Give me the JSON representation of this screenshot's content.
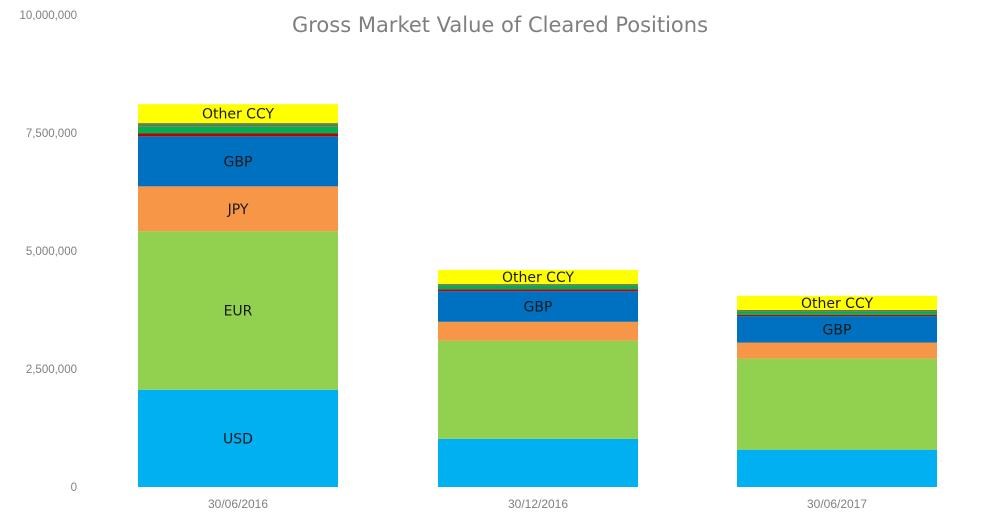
{
  "chart_data": {
    "type": "bar",
    "stacked": true,
    "title": "Gross Market Value of Cleared Positions",
    "xlabel": "",
    "ylabel": "",
    "ylim": [
      0,
      10000000
    ],
    "yticks": [
      0,
      2500000,
      5000000,
      7500000,
      10000000
    ],
    "ytick_labels": [
      "0",
      "2,500,000",
      "5,000,000",
      "7,500,000",
      "10,000,000"
    ],
    "categories": [
      "30/06/2016",
      "30/12/2016",
      "30/06/2017"
    ],
    "grid": false,
    "legend": "none",
    "series": [
      {
        "name": "USD",
        "color": "#00b0f0",
        "values": [
          2060000,
          1020000,
          790000
        ],
        "labels": [
          "USD",
          "",
          ""
        ]
      },
      {
        "name": "EUR",
        "color": "#92d050",
        "values": [
          3360000,
          2080000,
          1930000
        ],
        "labels": [
          "EUR",
          "",
          ""
        ]
      },
      {
        "name": "JPY",
        "color": "#f79646",
        "values": [
          950000,
          400000,
          340000
        ],
        "labels": [
          "JPY",
          "",
          ""
        ]
      },
      {
        "name": "GBP",
        "color": "#0070c0",
        "values": [
          1060000,
          650000,
          560000
        ],
        "labels": [
          "GBP",
          "GBP",
          "GBP"
        ]
      },
      {
        "color": "#c00000",
        "values": [
          60000,
          40000,
          30000
        ],
        "labels": [
          "",
          "",
          ""
        ]
      },
      {
        "color": "#00b050",
        "values": [
          140000,
          70000,
          60000
        ],
        "labels": [
          "",
          "",
          ""
        ]
      },
      {
        "color": "#5f7f4f",
        "values": [
          80000,
          40000,
          40000
        ],
        "labels": [
          "",
          "",
          ""
        ]
      },
      {
        "name": "Other CCY",
        "color": "#ffff00",
        "values": [
          400000,
          300000,
          300000
        ],
        "labels": [
          "Other CCY",
          "Other CCY",
          "Other CCY"
        ]
      }
    ]
  }
}
